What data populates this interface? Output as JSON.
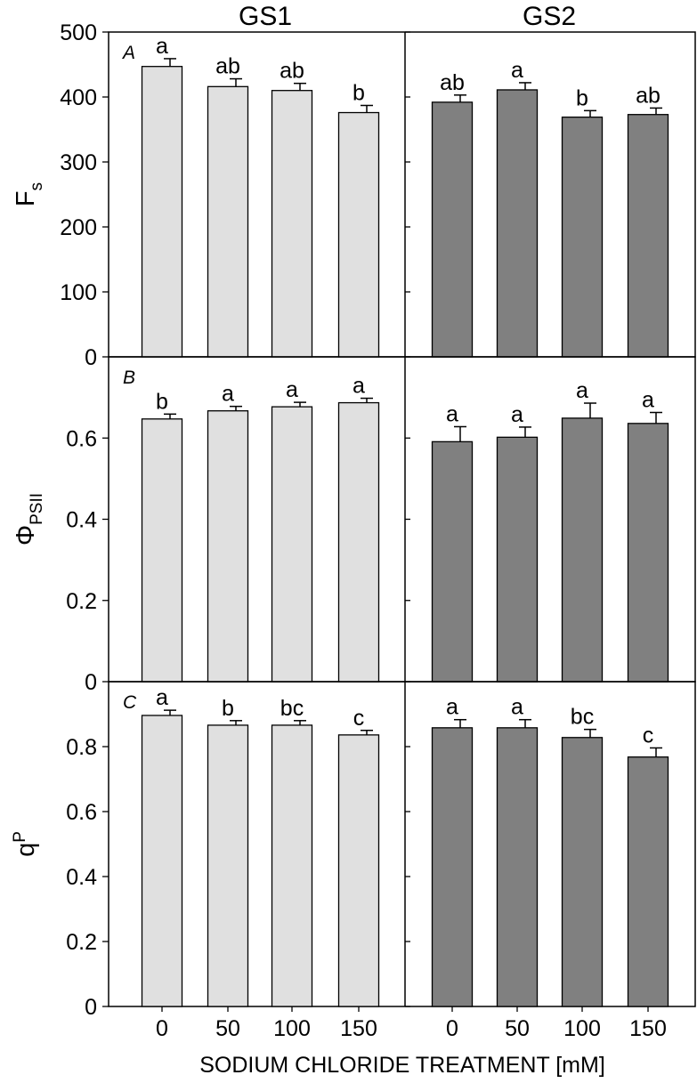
{
  "chart_data": {
    "type": "bar",
    "x_title": "SODIUM CHLORIDE TREATMENT [mM]",
    "column_titles": [
      "GS1",
      "GS2"
    ],
    "categories": [
      "0",
      "50",
      "100",
      "150"
    ],
    "colors": {
      "GS1": "#e0e0e0",
      "GS2": "#808080",
      "frame": "#000000"
    },
    "panels": [
      {
        "letter": "A",
        "ylabel_main": "F",
        "ylabel_sub": "s",
        "sub_position": "below",
        "ylim": [
          0,
          500
        ],
        "ticks": [
          "0",
          "100",
          "200",
          "300",
          "400",
          "500"
        ],
        "GS1": {
          "values": [
            447,
            416,
            410,
            376
          ],
          "errors": [
            12,
            12,
            11,
            11
          ],
          "letters": [
            "a",
            "ab",
            "ab",
            "b"
          ]
        },
        "GS2": {
          "values": [
            392,
            411,
            369,
            373
          ],
          "errors": [
            11,
            11,
            10,
            10
          ],
          "letters": [
            "ab",
            "a",
            "b",
            "ab"
          ]
        }
      },
      {
        "letter": "B",
        "ylabel_main": "Φ",
        "ylabel_sub": "PSII",
        "sub_position": "below",
        "ylim": [
          0,
          0.8
        ],
        "ticks": [
          "0",
          "0.2",
          "0.4",
          "0.6"
        ],
        "GS1": {
          "values": [
            0.647,
            0.667,
            0.677,
            0.687
          ],
          "errors": [
            0.012,
            0.011,
            0.011,
            0.011
          ],
          "letters": [
            "b",
            "a",
            "a",
            "a"
          ]
        },
        "GS2": {
          "values": [
            0.591,
            0.602,
            0.649,
            0.636
          ],
          "errors": [
            0.037,
            0.025,
            0.037,
            0.027
          ],
          "letters": [
            "a",
            "a",
            "a",
            "a"
          ]
        }
      },
      {
        "letter": "C",
        "ylabel_main": "q",
        "ylabel_sub": "P",
        "sub_position": "above",
        "ylim": [
          0,
          1.0
        ],
        "ticks": [
          "0",
          "0.2",
          "0.4",
          "0.6",
          "0.8"
        ],
        "GS1": {
          "values": [
            0.896,
            0.866,
            0.866,
            0.836
          ],
          "errors": [
            0.016,
            0.014,
            0.014,
            0.014
          ],
          "letters": [
            "a",
            "b",
            "bc",
            "c"
          ]
        },
        "GS2": {
          "values": [
            0.858,
            0.858,
            0.828,
            0.768
          ],
          "errors": [
            0.025,
            0.025,
            0.025,
            0.028
          ],
          "letters": [
            "a",
            "a",
            "bc",
            "c"
          ]
        }
      }
    ]
  }
}
